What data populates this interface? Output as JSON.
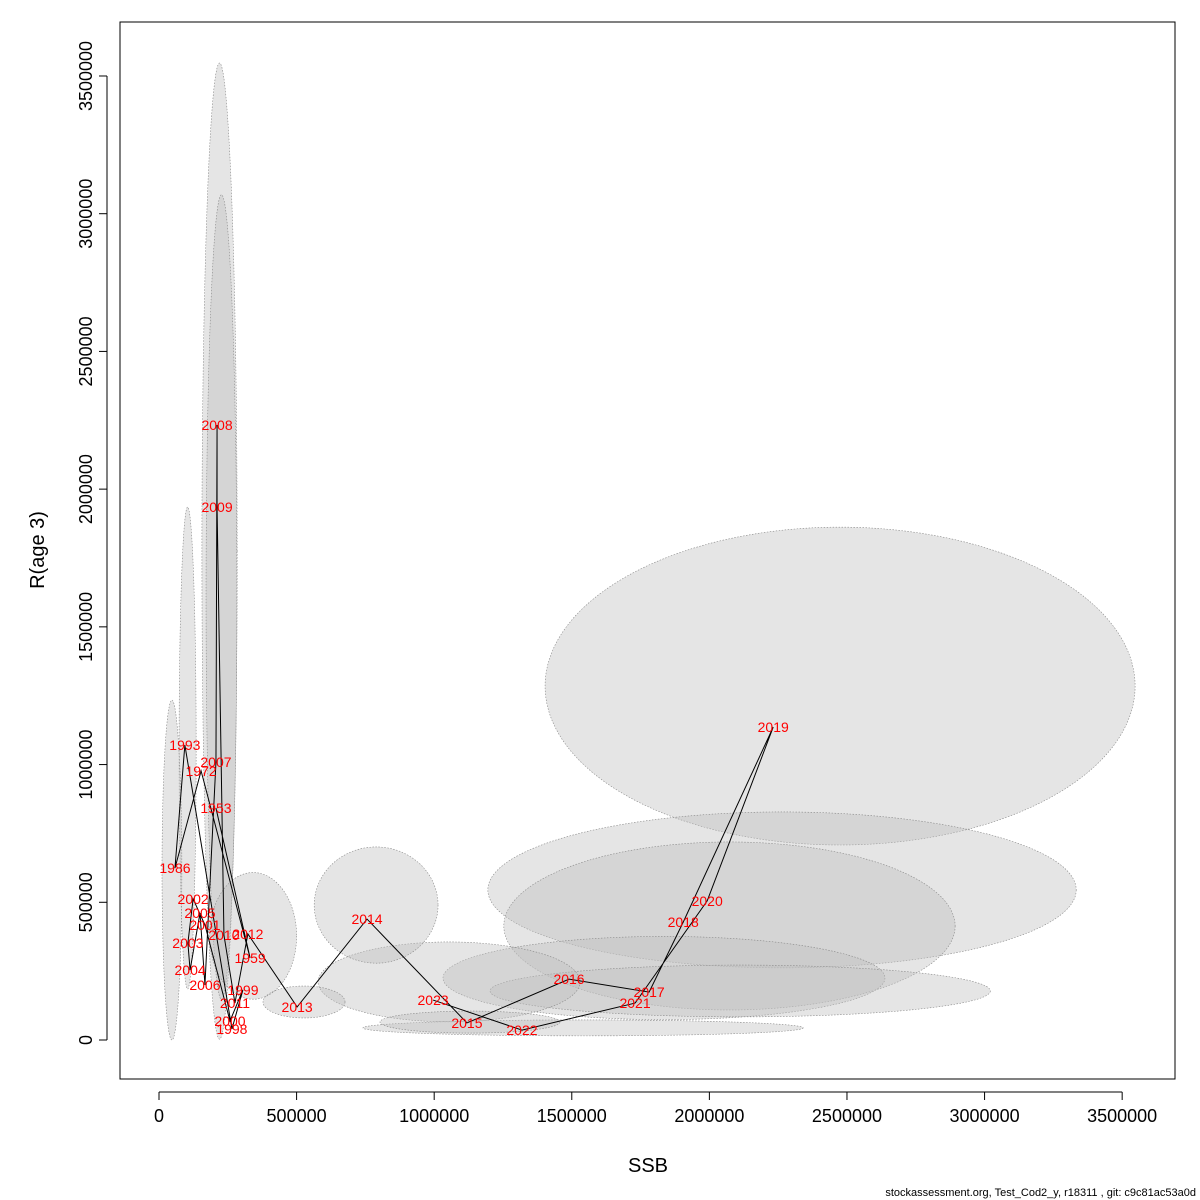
{
  "chart_data": {
    "type": "scatter",
    "xlabel": "SSB",
    "ylabel": "R(age 3)",
    "footer": "stockassessment.org, Test_Cod2_y, r18311 , git: c9c81ac53a0d",
    "labels": [
      "1953",
      "1959",
      "1972",
      "1986",
      "1993",
      "1998",
      "1999",
      "2000",
      "2001",
      "2002",
      "2003",
      "2004",
      "2005",
      "2006",
      "2007",
      "2008",
      "2009",
      "2010",
      "2011",
      "2012",
      "2013",
      "2014",
      "2015",
      "2016",
      "2017",
      "2018",
      "2019",
      "2020",
      "2021",
      "2022",
      "2023"
    ],
    "x": [
      207000,
      331000,
      153000,
      58000,
      94000,
      265000,
      305000,
      258000,
      167000,
      124000,
      105000,
      113000,
      149000,
      167000,
      207000,
      211000,
      211000,
      236000,
      276000,
      323000,
      502000,
      756000,
      1119000,
      1490000,
      1781000,
      1905000,
      2232000,
      1992000,
      1730000,
      1319000,
      996000
    ],
    "y": [
      842000,
      298000,
      977000,
      624000,
      1071000,
      40000,
      182000,
      69000,
      418000,
      512000,
      352000,
      254000,
      461000,
      200000,
      1009000,
      2233000,
      1935000,
      381000,
      134000,
      385000,
      120000,
      439000,
      62000,
      221000,
      174000,
      428000,
      1136000,
      505000,
      134000,
      36000,
      145000
    ],
    "label_color": "#ff0000",
    "line_color": "#000000",
    "ellipse_color": "#bdbdbd",
    "ellipses": [
      {
        "x": 2475000,
        "y": 1285000,
        "rx": 1072000,
        "ry": 577000
      },
      {
        "x": 2264000,
        "y": 545000,
        "rx": 1069000,
        "ry": 283000
      },
      {
        "x": 2073000,
        "y": 414000,
        "rx": 820000,
        "ry": 305000
      },
      {
        "x": 1835000,
        "y": 225000,
        "rx": 803000,
        "ry": 151000
      },
      {
        "x": 2112000,
        "y": 178000,
        "rx": 909000,
        "ry": 94000
      },
      {
        "x": 1054000,
        "y": 211000,
        "rx": 476000,
        "ry": 145000
      },
      {
        "x": 1541000,
        "y": 44000,
        "rx": 800000,
        "ry": 29000
      },
      {
        "x": 1130000,
        "y": 65000,
        "rx": 327000,
        "ry": 40000
      },
      {
        "x": 789000,
        "y": 490000,
        "rx": 225000,
        "ry": 211000
      },
      {
        "x": 527000,
        "y": 138000,
        "rx": 149000,
        "ry": 58000
      },
      {
        "x": 220000,
        "y": 1775000,
        "rx": 64000,
        "ry": 1772000
      },
      {
        "x": 227000,
        "y": 1608000,
        "rx": 56000,
        "ry": 1461000
      },
      {
        "x": 104000,
        "y": 1060000,
        "rx": 31000,
        "ry": 875000
      },
      {
        "x": 47000,
        "y": 617000,
        "rx": 36000,
        "ry": 617000
      },
      {
        "x": 342000,
        "y": 378000,
        "rx": 158000,
        "ry": 230000
      }
    ],
    "xlim": [
      -141700,
      3692000
    ],
    "ylim": [
      -141600,
      3696000
    ],
    "xticks": [
      0,
      500000,
      1000000,
      1500000,
      2000000,
      2500000,
      3000000,
      3500000
    ],
    "yticks": [
      0,
      500000,
      1000000,
      1500000,
      2000000,
      2500000,
      3000000,
      3500000
    ]
  }
}
